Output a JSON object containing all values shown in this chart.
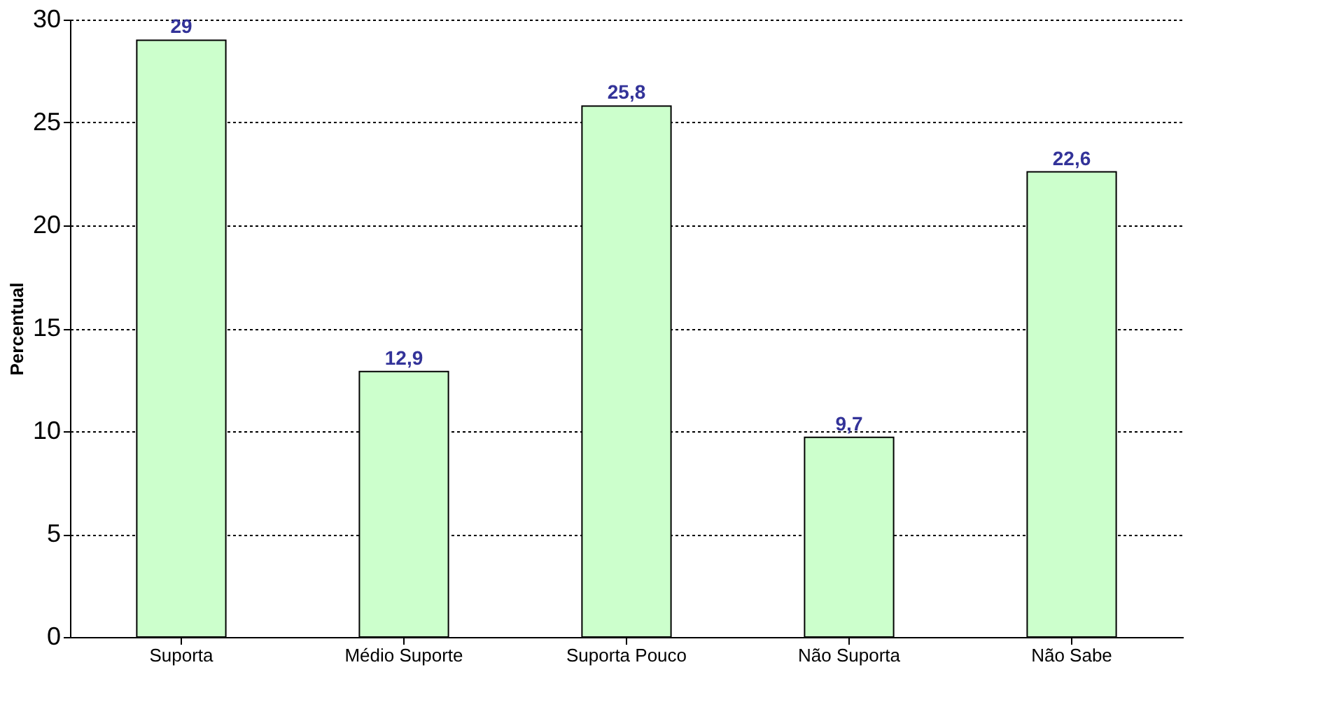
{
  "chart_data": {
    "type": "bar",
    "ylabel": "Percentual",
    "categories": [
      "Suporta",
      "Médio Suporte",
      "Suporta Pouco",
      "Não Suporta",
      "Não Sabe"
    ],
    "values": [
      29,
      12.9,
      25.8,
      9.7,
      22.6
    ],
    "value_labels": [
      "29",
      "12,9",
      "25,8",
      "9,7",
      "22,6"
    ],
    "color": "#ccffcc",
    "ylim": [
      0,
      30
    ],
    "yticks": [
      0,
      5,
      10,
      15,
      20,
      25,
      30
    ],
    "grid": "y"
  }
}
